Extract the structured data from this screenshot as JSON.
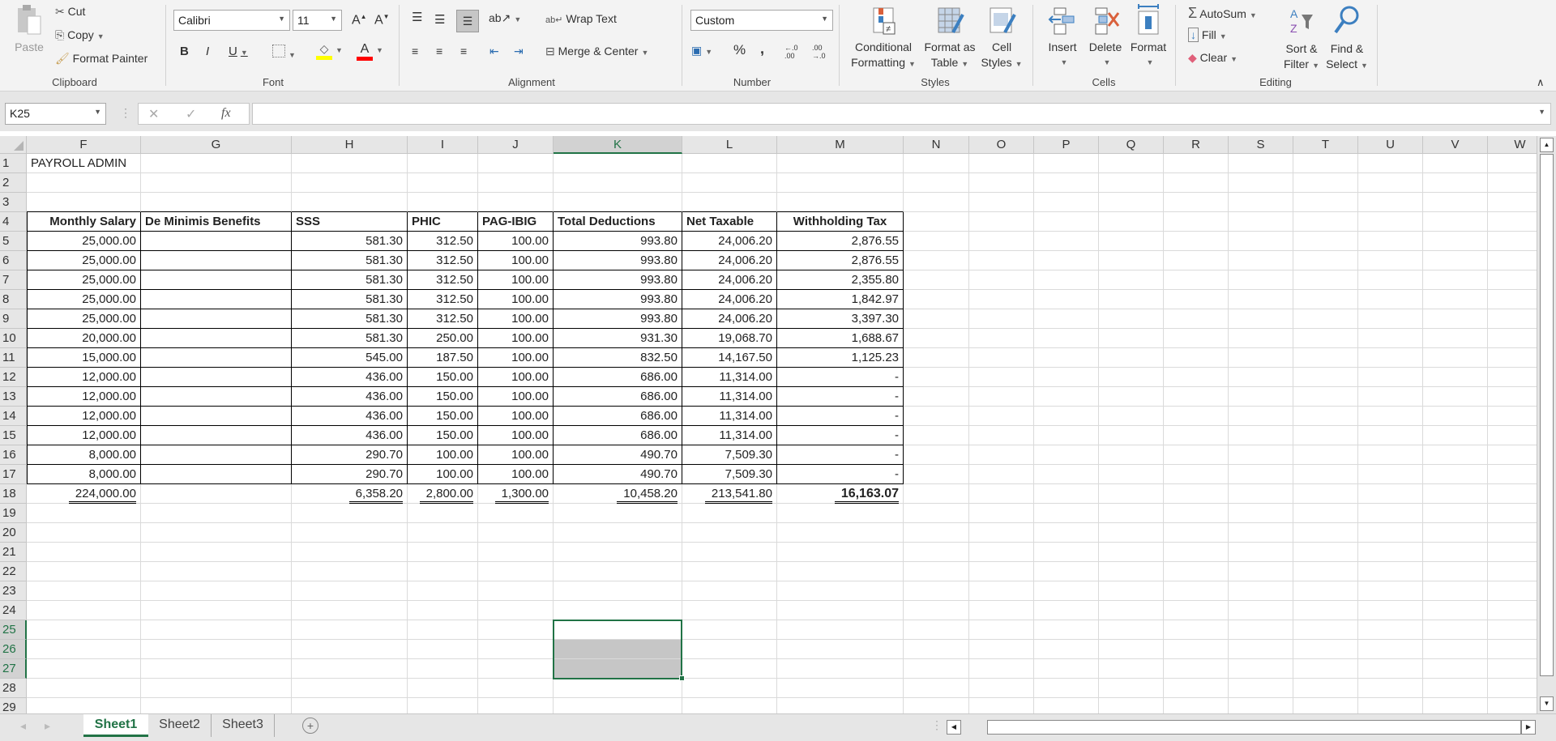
{
  "ribbon": {
    "clipboard": {
      "label": "Clipboard",
      "paste": "Paste",
      "cut": "Cut",
      "copy": "Copy",
      "format_painter": "Format Painter"
    },
    "font": {
      "label": "Font",
      "font_name": "Calibri",
      "font_size": "11",
      "bold": "B",
      "italic": "I",
      "underline": "U",
      "highlight_color": "#ffff00",
      "font_color": "#ff0000"
    },
    "alignment": {
      "label": "Alignment",
      "wrap_text": "Wrap Text",
      "merge_center": "Merge & Center"
    },
    "number": {
      "label": "Number",
      "format": "Custom",
      "percent": "%",
      "comma": ","
    },
    "styles": {
      "label": "Styles",
      "conditional_formatting": [
        "Conditional",
        "Formatting"
      ],
      "format_as_table": [
        "Format as",
        "Table"
      ],
      "cell_styles": [
        "Cell",
        "Styles"
      ]
    },
    "cells": {
      "label": "Cells",
      "insert": "Insert",
      "delete": "Delete",
      "format": "Format"
    },
    "editing": {
      "label": "Editing",
      "autosum": "AutoSum",
      "fill": "Fill",
      "clear": "Clear",
      "sort_filter": [
        "Sort &",
        "Filter"
      ],
      "find_select": [
        "Find &",
        "Select"
      ]
    }
  },
  "formula_bar": {
    "name_box": "K25",
    "fx": "fx",
    "formula": ""
  },
  "columns": [
    "F",
    "G",
    "H",
    "I",
    "J",
    "K",
    "L",
    "M",
    "N",
    "O",
    "P",
    "Q",
    "R",
    "S",
    "T",
    "U",
    "V",
    "W"
  ],
  "selected_column": "K",
  "selected_cell": "K25",
  "selected_rows": [
    25,
    26,
    27
  ],
  "sheet": {
    "title": "PAYROLL ADMIN",
    "headers": [
      "Monthly Salary",
      "De Minimis Benefits",
      "SSS",
      "PHIC",
      "PAG-IBIG",
      "Total Deductions",
      "Net Taxable",
      "Withholding Tax"
    ],
    "rows": [
      [
        "25,000.00",
        "",
        "581.30",
        "312.50",
        "100.00",
        "993.80",
        "24,006.20",
        "2,876.55"
      ],
      [
        "25,000.00",
        "",
        "581.30",
        "312.50",
        "100.00",
        "993.80",
        "24,006.20",
        "2,876.55"
      ],
      [
        "25,000.00",
        "",
        "581.30",
        "312.50",
        "100.00",
        "993.80",
        "24,006.20",
        "2,355.80"
      ],
      [
        "25,000.00",
        "",
        "581.30",
        "312.50",
        "100.00",
        "993.80",
        "24,006.20",
        "1,842.97"
      ],
      [
        "25,000.00",
        "",
        "581.30",
        "312.50",
        "100.00",
        "993.80",
        "24,006.20",
        "3,397.30"
      ],
      [
        "20,000.00",
        "",
        "581.30",
        "250.00",
        "100.00",
        "931.30",
        "19,068.70",
        "1,688.67"
      ],
      [
        "15,000.00",
        "",
        "545.00",
        "187.50",
        "100.00",
        "832.50",
        "14,167.50",
        "1,125.23"
      ],
      [
        "12,000.00",
        "",
        "436.00",
        "150.00",
        "100.00",
        "686.00",
        "11,314.00",
        "-"
      ],
      [
        "12,000.00",
        "",
        "436.00",
        "150.00",
        "100.00",
        "686.00",
        "11,314.00",
        "-"
      ],
      [
        "12,000.00",
        "",
        "436.00",
        "150.00",
        "100.00",
        "686.00",
        "11,314.00",
        "-"
      ],
      [
        "12,000.00",
        "",
        "436.00",
        "150.00",
        "100.00",
        "686.00",
        "11,314.00",
        "-"
      ],
      [
        "8,000.00",
        "",
        "290.70",
        "100.00",
        "100.00",
        "490.70",
        "7,509.30",
        "-"
      ],
      [
        "8,000.00",
        "",
        "290.70",
        "100.00",
        "100.00",
        "490.70",
        "7,509.30",
        "-"
      ]
    ],
    "totals": [
      "224,000.00",
      "",
      "6,358.20",
      "2,800.00",
      "1,300.00",
      "10,458.20",
      "213,541.80",
      "16,163.07"
    ]
  },
  "sheet_tabs": [
    {
      "label": "Sheet1",
      "active": true
    },
    {
      "label": "Sheet2",
      "active": false
    },
    {
      "label": "Sheet3",
      "active": false
    }
  ],
  "colors": {
    "accent": "#217346",
    "selection_fill": "#c6c6c6"
  }
}
